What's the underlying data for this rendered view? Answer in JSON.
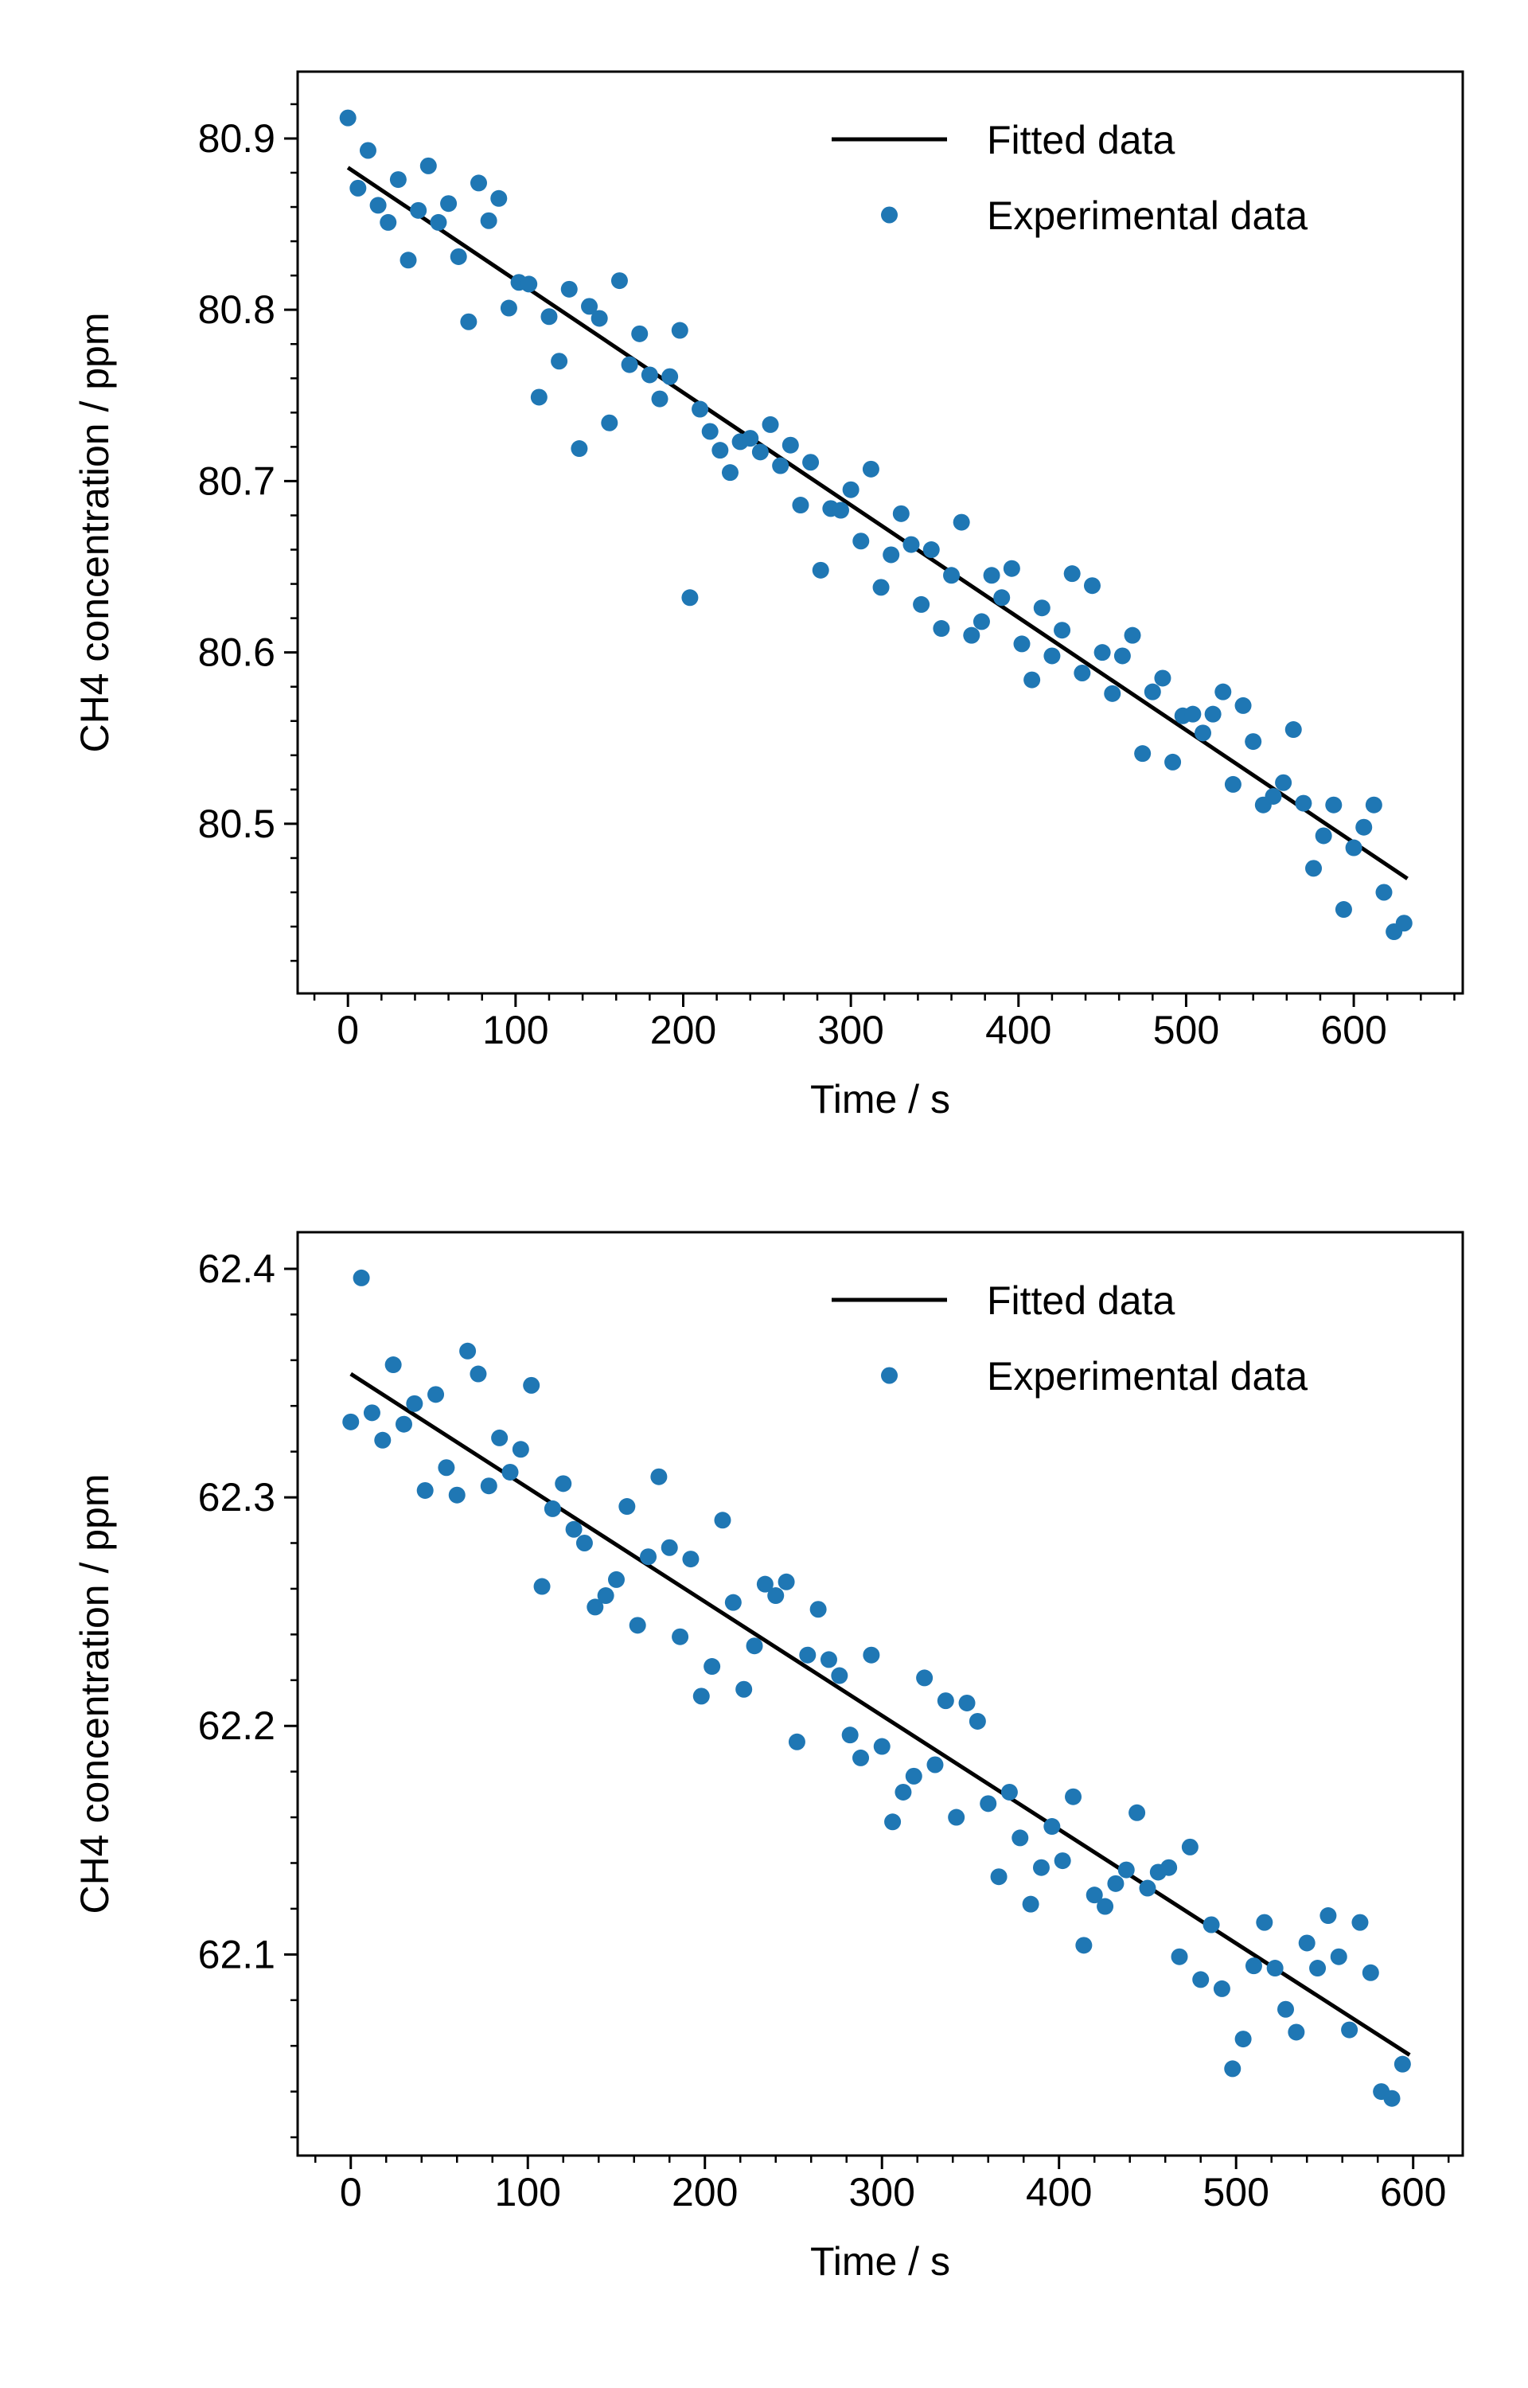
{
  "colors": {
    "fit": "#000000",
    "points": "#1f77b4",
    "axes": "#000000"
  },
  "chart_data": [
    {
      "type": "scatter",
      "xlabel": "Time / s",
      "ylabel": "CH4 concentration / ppm",
      "xlim": [
        -30,
        665
      ],
      "ylim": [
        80.401,
        80.939
      ],
      "xticks": [
        0,
        100,
        200,
        300,
        400,
        500,
        600
      ],
      "xtick_labels": [
        "0",
        "100",
        "200",
        "300",
        "400",
        "500",
        "600"
      ],
      "yticks": [
        80.5,
        80.6,
        80.7,
        80.8,
        80.9
      ],
      "ytick_labels": [
        "80.5",
        "80.6",
        "80.7",
        "80.8",
        "80.9"
      ],
      "legend_position": "top-right",
      "grid": false,
      "series": [
        {
          "name": "Fitted data",
          "kind": "line",
          "x": [
            0,
            632
          ],
          "y": [
            80.883,
            80.468
          ]
        },
        {
          "name": "Experimental data",
          "kind": "scatter",
          "x": [
            0,
            6,
            12,
            18,
            24,
            30,
            36,
            42,
            48,
            54,
            60,
            66,
            72,
            78,
            84,
            90,
            96,
            102,
            108,
            114,
            120,
            126,
            132,
            138,
            144,
            150,
            156,
            162,
            168,
            174,
            180,
            186,
            192,
            198,
            204,
            210,
            216,
            222,
            228,
            234,
            240,
            246,
            252,
            258,
            264,
            270,
            276,
            282,
            288,
            294,
            300,
            306,
            312,
            318,
            324,
            330,
            336,
            342,
            348,
            354,
            360,
            366,
            372,
            378,
            384,
            390,
            396,
            402,
            408,
            414,
            420,
            426,
            432,
            438,
            444,
            450,
            456,
            462,
            468,
            474,
            480,
            486,
            492,
            498,
            504,
            510,
            516,
            522,
            528,
            534,
            540,
            546,
            552,
            558,
            564,
            570,
            576,
            582,
            588,
            594,
            600,
            606,
            612,
            618,
            624,
            630
          ],
          "y": [
            80.912,
            80.871,
            80.893,
            80.861,
            80.851,
            80.876,
            80.829,
            80.858,
            80.884,
            80.851,
            80.862,
            80.831,
            80.793,
            80.874,
            80.852,
            80.865,
            80.801,
            80.816,
            80.815,
            80.749,
            80.796,
            80.77,
            80.812,
            80.719,
            80.802,
            80.795,
            80.734,
            80.817,
            80.768,
            80.786,
            80.762,
            80.748,
            80.761,
            80.788,
            80.632,
            80.742,
            80.729,
            80.718,
            80.705,
            80.723,
            80.725,
            80.717,
            80.733,
            80.709,
            80.721,
            80.686,
            80.711,
            80.648,
            80.684,
            80.683,
            80.695,
            80.665,
            80.707,
            80.638,
            80.657,
            80.681,
            80.663,
            80.628,
            80.66,
            80.614,
            80.645,
            80.676,
            80.61,
            80.618,
            80.645,
            80.632,
            80.649,
            80.605,
            80.584,
            80.626,
            80.598,
            80.613,
            80.646,
            80.588,
            80.639,
            80.6,
            80.576,
            80.598,
            80.61,
            80.541,
            80.577,
            80.585,
            80.536,
            80.563,
            80.564,
            80.553,
            80.564,
            80.577,
            80.523,
            80.569,
            80.548,
            80.511,
            80.516,
            80.524,
            80.555,
            80.512,
            80.474,
            80.493,
            80.511,
            80.45,
            80.486,
            80.498,
            80.511,
            80.46,
            80.437,
            80.442
          ]
        }
      ]
    },
    {
      "type": "scatter",
      "xlabel": "Time / s",
      "ylabel": "CH4 concentration / ppm",
      "xlim": [
        -30,
        628
      ],
      "ylim": [
        62.012,
        62.416
      ],
      "xticks": [
        0,
        100,
        200,
        300,
        400,
        500,
        600
      ],
      "xtick_labels": [
        "0",
        "100",
        "200",
        "300",
        "400",
        "500",
        "600"
      ],
      "yticks": [
        62.1,
        62.2,
        62.3,
        62.4
      ],
      "ytick_labels": [
        "62.1",
        "62.2",
        "62.3",
        "62.4"
      ],
      "legend_position": "top-right",
      "grid": false,
      "series": [
        {
          "name": "Fitted data",
          "kind": "line",
          "x": [
            0,
            598
          ],
          "y": [
            62.354,
            62.056
          ]
        },
        {
          "name": "Experimental data",
          "kind": "scatter",
          "x": [
            0,
            6,
            12,
            18,
            24,
            30,
            36,
            42,
            48,
            54,
            60,
            66,
            72,
            78,
            84,
            90,
            96,
            102,
            108,
            114,
            120,
            126,
            132,
            138,
            144,
            150,
            156,
            162,
            168,
            174,
            180,
            186,
            192,
            198,
            204,
            210,
            216,
            222,
            228,
            234,
            240,
            246,
            252,
            258,
            264,
            270,
            276,
            282,
            288,
            294,
            300,
            306,
            312,
            318,
            324,
            330,
            336,
            342,
            348,
            354,
            360,
            366,
            372,
            378,
            384,
            390,
            396,
            402,
            408,
            414,
            420,
            426,
            432,
            438,
            444,
            450,
            456,
            462,
            468,
            474,
            480,
            486,
            492,
            498,
            504,
            510,
            516,
            522,
            528,
            534,
            540,
            546,
            552,
            558,
            564,
            570,
            576,
            582,
            588,
            594
          ],
          "y": [
            62.333,
            62.396,
            62.337,
            62.325,
            62.358,
            62.332,
            62.341,
            62.303,
            62.345,
            62.313,
            62.301,
            62.364,
            62.354,
            62.305,
            62.326,
            62.311,
            62.321,
            62.349,
            62.261,
            62.295,
            62.306,
            62.286,
            62.28,
            62.252,
            62.257,
            62.264,
            62.296,
            62.244,
            62.274,
            62.309,
            62.278,
            62.239,
            62.273,
            62.213,
            62.226,
            62.29,
            62.254,
            62.216,
            62.235,
            62.262,
            62.257,
            62.263,
            62.193,
            62.231,
            62.251,
            62.229,
            62.222,
            62.196,
            62.186,
            62.231,
            62.191,
            62.158,
            62.171,
            62.178,
            62.221,
            62.183,
            62.211,
            62.16,
            62.21,
            62.202,
            62.166,
            62.134,
            62.171,
            62.151,
            62.122,
            62.138,
            62.156,
            62.141,
            62.169,
            62.104,
            62.126,
            62.121,
            62.131,
            62.137,
            62.162,
            62.129,
            62.136,
            62.138,
            62.099,
            62.147,
            62.089,
            62.113,
            62.085,
            62.05,
            62.063,
            62.095,
            62.114,
            62.094,
            62.076,
            62.066,
            62.105,
            62.094,
            62.117,
            62.099,
            62.067,
            62.114,
            62.092,
            62.04,
            62.037,
            62.052
          ]
        }
      ]
    }
  ]
}
